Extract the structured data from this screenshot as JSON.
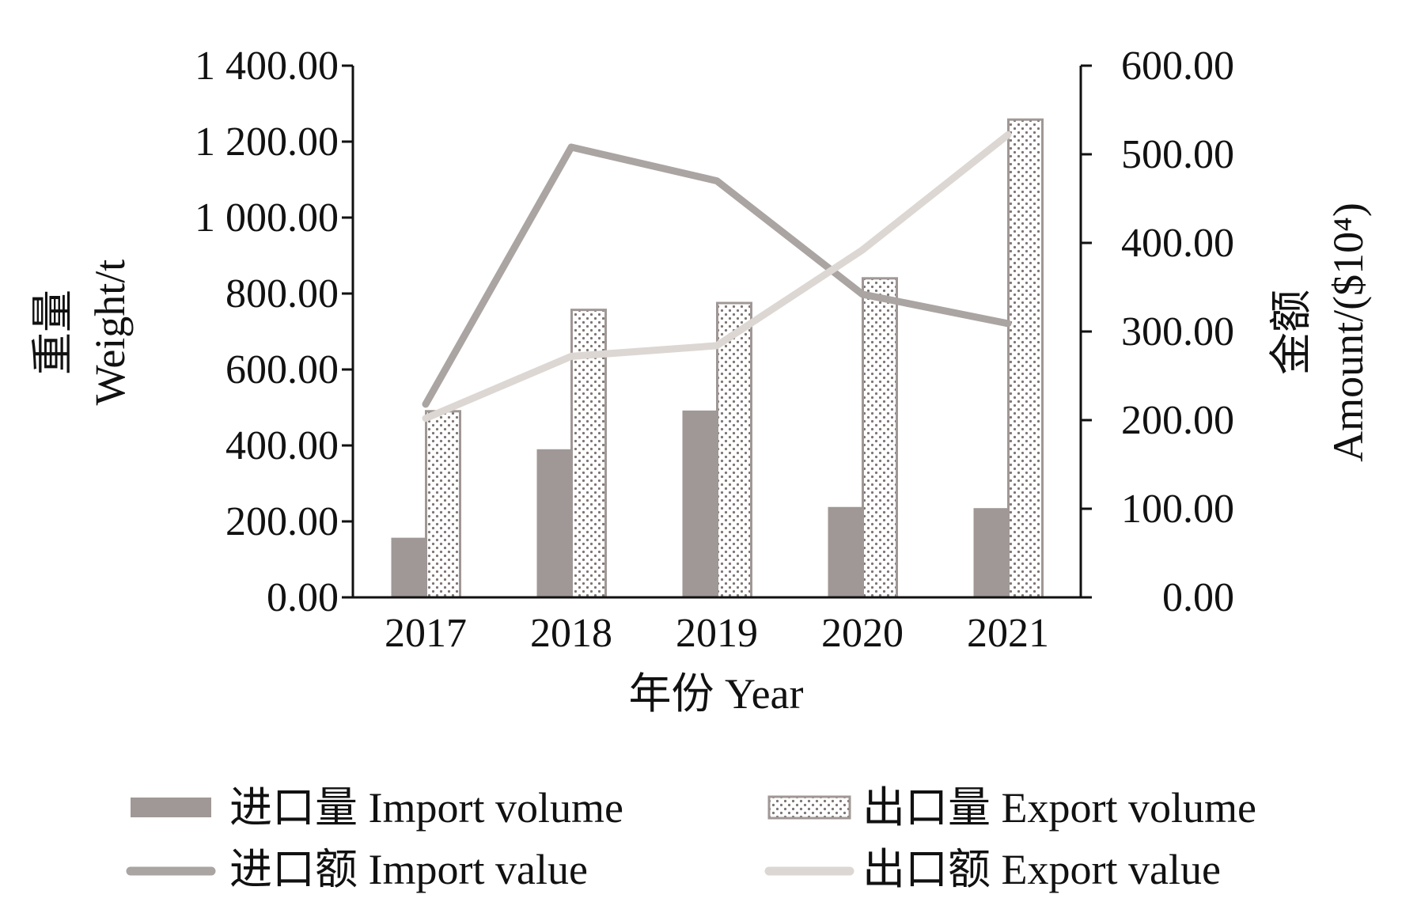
{
  "chart_data": {
    "type": "bar",
    "categories": [
      "2017",
      "2018",
      "2019",
      "2020",
      "2021"
    ],
    "xlabel": "年份 Year",
    "ylabel_left": [
      "重量",
      "Weight/t"
    ],
    "ylabel_right": [
      "金额",
      "Amount/($10⁴)"
    ],
    "y_left": {
      "range": [
        0,
        1400
      ],
      "ticks": [
        0,
        200,
        400,
        600,
        800,
        1000,
        1200,
        1400
      ],
      "tick_labels": [
        "0.00",
        "200.00",
        "400.00",
        "600.00",
        "800.00",
        "1 000.00",
        "1 200.00",
        "1 400.00"
      ]
    },
    "y_right": {
      "range": [
        0,
        600
      ],
      "ticks": [
        0,
        100,
        200,
        300,
        400,
        500,
        600
      ],
      "tick_labels": [
        "0.00",
        "100.00",
        "200.00",
        "300.00",
        "400.00",
        "500.00",
        "600.00"
      ]
    },
    "grid": false,
    "legend_placement": "bottom",
    "series": [
      {
        "name": "进口量 Import volume",
        "kind": "bar",
        "axis": "left",
        "style": "solid",
        "color": "#a09896",
        "values": [
          157,
          390,
          492,
          238,
          235
        ]
      },
      {
        "name": "出口量 Export volume",
        "kind": "bar",
        "axis": "left",
        "style": "dotted",
        "color": "#ffffff",
        "stroke": "#a09896",
        "values": [
          490,
          757,
          775,
          840,
          1258
        ]
      },
      {
        "name": "进口额 Import value",
        "kind": "line",
        "axis": "right",
        "color": "#aaa4a2",
        "values": [
          218,
          508,
          470,
          342,
          309
        ]
      },
      {
        "name": "出口额 Export value",
        "kind": "line",
        "axis": "right",
        "color": "#dcd7d3",
        "values": [
          202,
          272,
          284,
          392,
          522
        ]
      }
    ]
  }
}
